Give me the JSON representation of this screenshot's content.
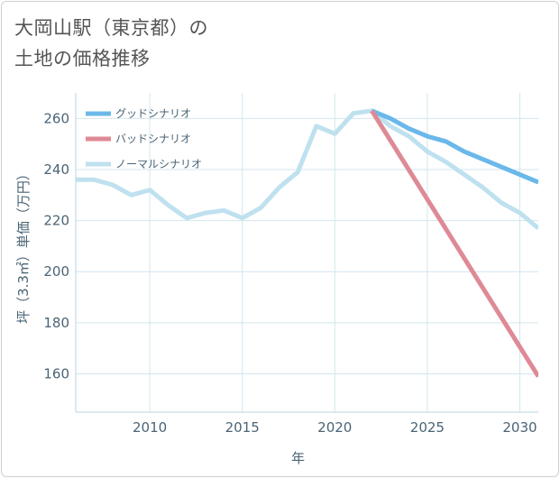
{
  "title": {
    "line1": "大岡山駅（東京都）の",
    "line2": "土地の価格推移"
  },
  "chart_data": {
    "type": "line",
    "xlabel": "年",
    "ylabel": "坪（3.3㎡）単価（万円）",
    "xlim": [
      2006,
      2031
    ],
    "ylim": [
      145,
      270
    ],
    "xticks": [
      2010,
      2015,
      2020,
      2025,
      2030
    ],
    "yticks": [
      160,
      180,
      200,
      220,
      240,
      260
    ],
    "grid": true,
    "legend_position": "top-left",
    "series": [
      {
        "name": "ノーマルシナリオ",
        "color": "#bfe1ef",
        "x": [
          2006,
          2007,
          2008,
          2009,
          2010,
          2011,
          2012,
          2013,
          2014,
          2015,
          2016,
          2017,
          2018,
          2019,
          2020,
          2021,
          2022,
          2023,
          2024,
          2025,
          2026,
          2027,
          2028,
          2029,
          2030,
          2031
        ],
        "y": [
          236,
          236,
          234,
          230,
          232,
          226,
          221,
          223,
          224,
          221,
          225,
          233,
          239,
          257,
          254,
          262,
          263,
          257,
          253,
          247,
          243,
          238,
          233,
          227,
          223,
          217
        ]
      },
      {
        "name": "グッドシナリオ",
        "color": "#6bb8ea",
        "x": [
          2022,
          2023,
          2024,
          2025,
          2026,
          2027,
          2028,
          2029,
          2030,
          2031
        ],
        "y": [
          263,
          260,
          256,
          253,
          251,
          247,
          244,
          241,
          238,
          235
        ]
      },
      {
        "name": "バッドシナリオ",
        "color": "#de8a96",
        "x": [
          2022,
          2031
        ],
        "y": [
          263,
          159
        ]
      }
    ]
  }
}
